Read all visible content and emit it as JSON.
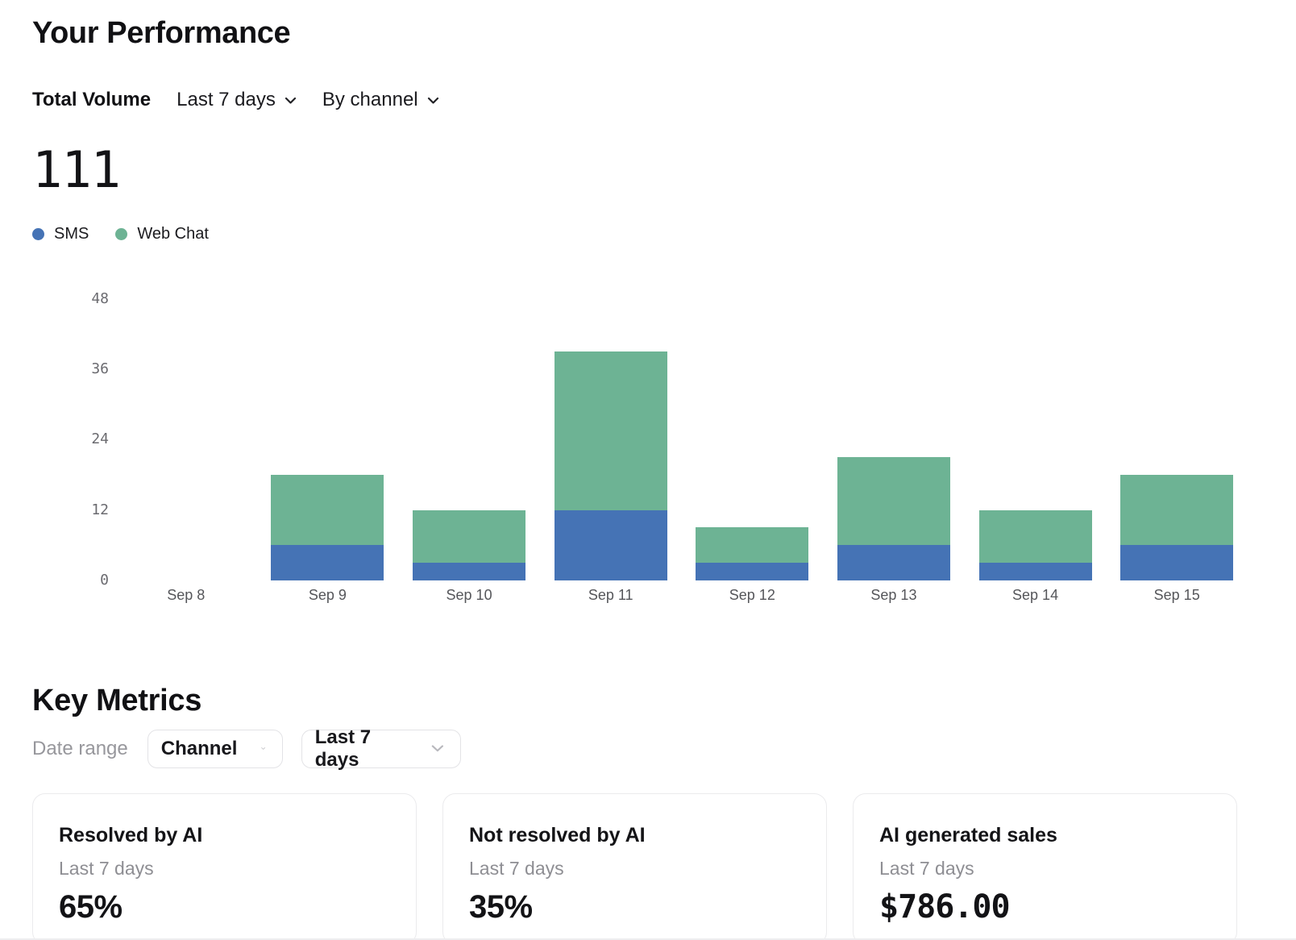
{
  "page": {
    "title": "Your Performance"
  },
  "volume_section": {
    "metric_label": "Total Volume",
    "range_dropdown": "Last 7 days",
    "group_dropdown": "By channel",
    "total_value": "111"
  },
  "chart_data": {
    "type": "bar",
    "stacked": true,
    "title": "Total Volume",
    "categories": [
      "Sep 8",
      "Sep 9",
      "Sep 10",
      "Sep 11",
      "Sep 12",
      "Sep 13",
      "Sep 14",
      "Sep 15"
    ],
    "series": [
      {
        "name": "SMS",
        "color": "#4573b5",
        "values": [
          0,
          6,
          3,
          12,
          3,
          6,
          3,
          6
        ]
      },
      {
        "name": "Web Chat",
        "color": "#6db394",
        "values": [
          0,
          12,
          9,
          27,
          6,
          15,
          9,
          12
        ]
      }
    ],
    "yticks": [
      0,
      12,
      24,
      36,
      48
    ],
    "ylim": [
      0,
      51
    ],
    "grid": false,
    "legend_position": "top-left"
  },
  "key_metrics": {
    "title": "Key Metrics",
    "filter_label": "Date range",
    "dropdowns": [
      {
        "value": "Channel"
      },
      {
        "value": "Last 7 days"
      }
    ],
    "cards": [
      {
        "title": "Resolved by AI",
        "subtitle": "Last 7 days",
        "value": "65%"
      },
      {
        "title": "Not resolved by AI",
        "subtitle": "Last 7 days",
        "value": "35%"
      },
      {
        "title": "AI generated sales",
        "subtitle": "Last 7 days",
        "value": "$786.00"
      }
    ]
  },
  "colors": {
    "sms": "#4573b5",
    "web_chat": "#6db394"
  }
}
